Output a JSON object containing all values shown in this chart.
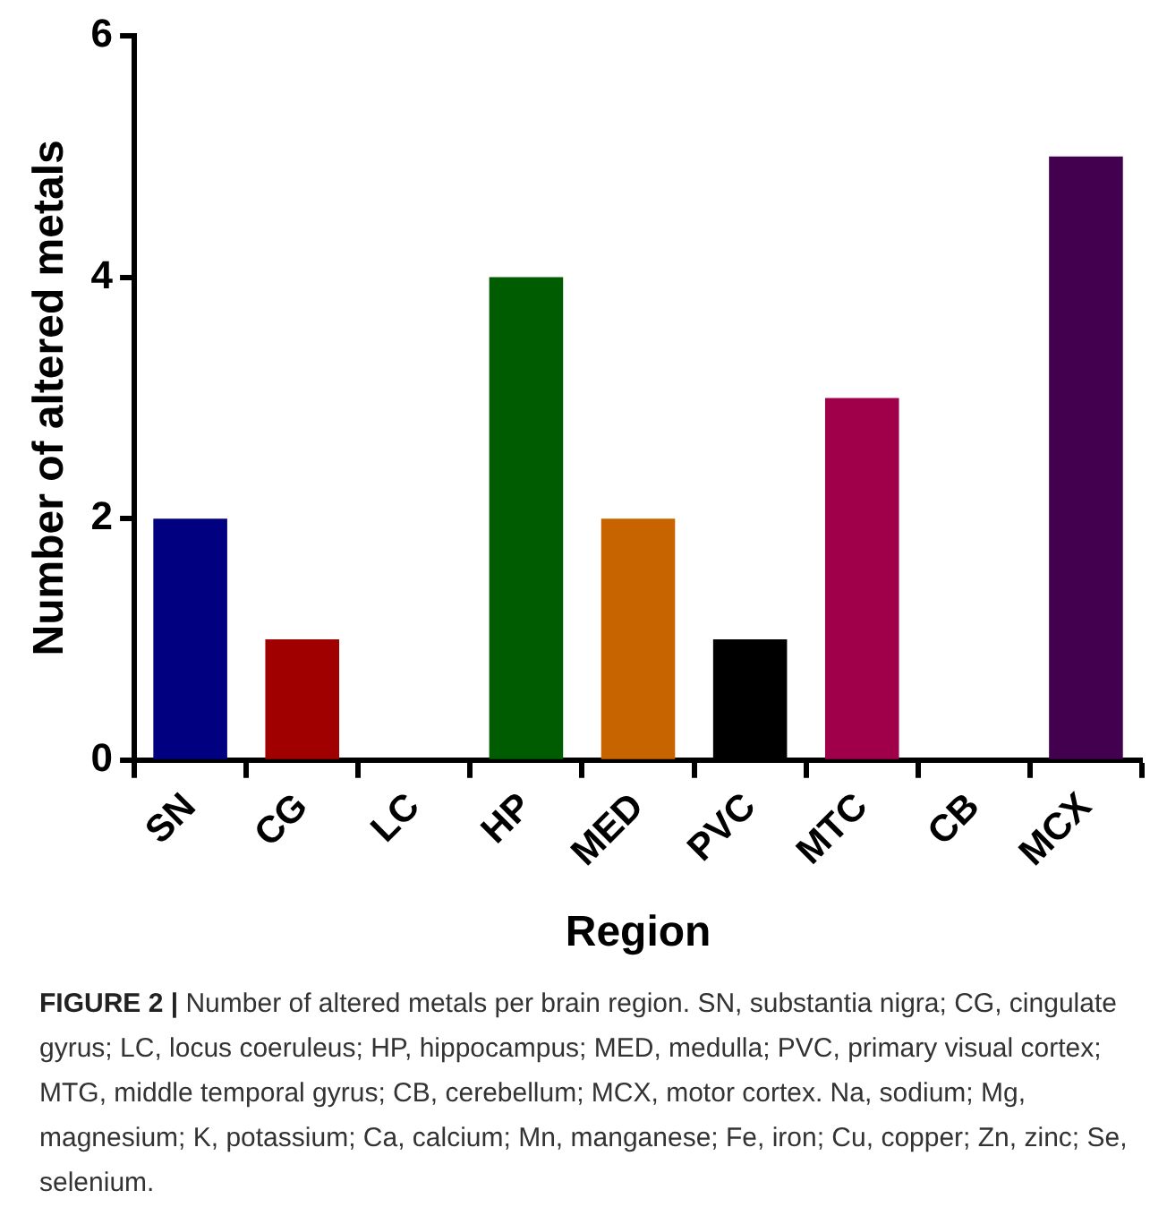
{
  "chart_data": {
    "type": "bar",
    "xlabel": "Region",
    "ylabel": "Number of altered metals",
    "categories": [
      "SN",
      "CG",
      "LC",
      "HP",
      "MED",
      "PVC",
      "MTC",
      "CB",
      "MCX"
    ],
    "values": [
      2,
      1,
      0,
      4,
      2,
      1,
      3,
      0,
      5
    ],
    "colors": [
      "#000080",
      "#a00000",
      "#000000",
      "#005c00",
      "#c86400",
      "#000000",
      "#a0004a",
      "#000000",
      "#42004f"
    ],
    "ylim": [
      0,
      6
    ],
    "yticks": [
      0,
      2,
      4,
      6
    ],
    "grid": false,
    "legend": false,
    "annotations": [
      "FIGURE 2 |",
      "Number of altered metals per brain region. SN, substantia nigra; CG, cingulate gyrus; LC, locus coeruleus; HP, hippocampus; MED, medulla; PVC, primary visual cortex; MTG, middle temporal gyrus; CB, cerebellum; MCX, motor cortex. Na, sodium; Mg, magnesium; K, potassium; Ca, calcium; Mn, manganese; Fe, iron; Cu, copper; Zn, zinc; Se, selenium."
    ]
  }
}
